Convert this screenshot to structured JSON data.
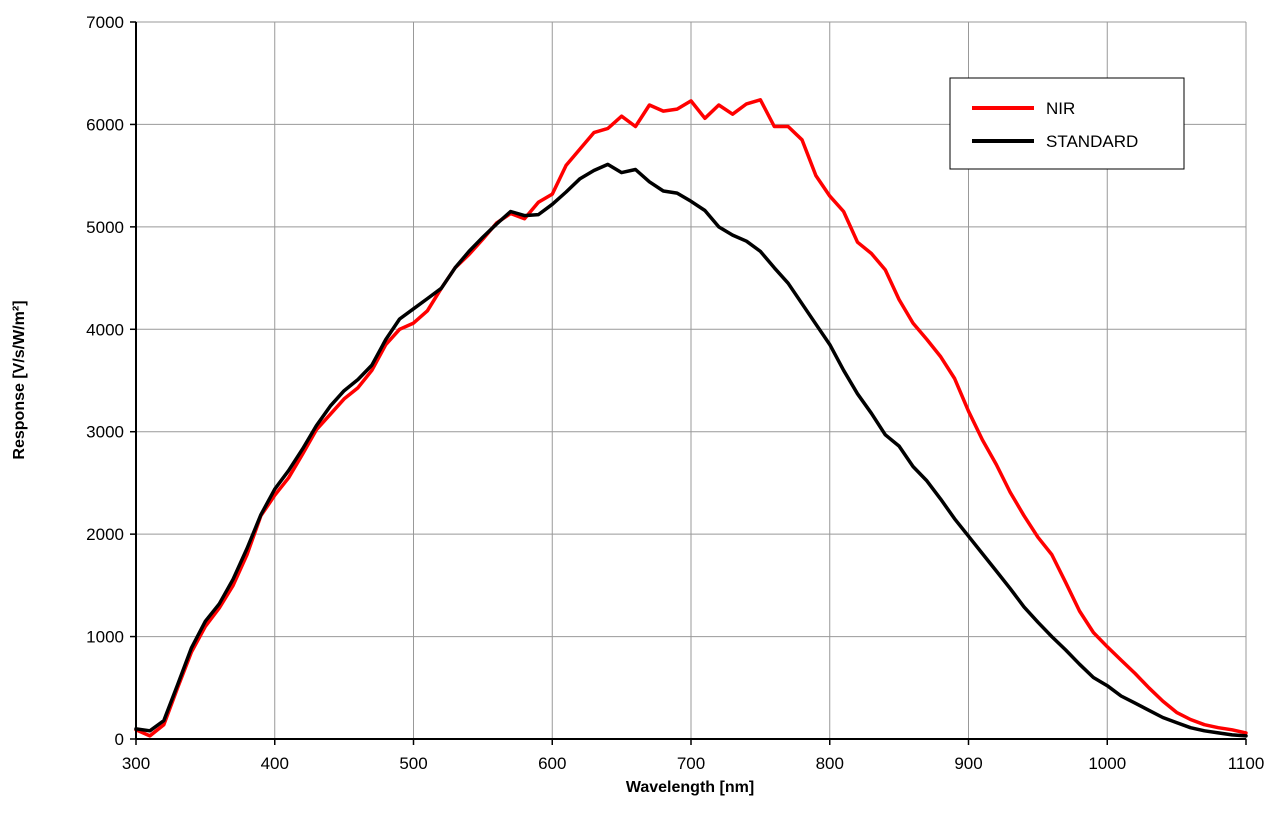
{
  "chart_data": {
    "type": "line",
    "title": "",
    "xlabel": "Wavelength [nm]",
    "ylabel": "Response [V/s/W/m²]",
    "xlim": [
      300,
      1100
    ],
    "ylim": [
      0,
      7000
    ],
    "xticks": [
      300,
      400,
      500,
      600,
      700,
      800,
      900,
      1000,
      1100
    ],
    "yticks": [
      0,
      1000,
      2000,
      3000,
      4000,
      5000,
      6000,
      7000
    ],
    "grid": true,
    "legend_position": "top-right",
    "series": [
      {
        "name": "NIR",
        "color": "#ff0000",
        "x": [
          300,
          310,
          320,
          330,
          340,
          350,
          360,
          370,
          380,
          390,
          400,
          410,
          420,
          430,
          440,
          450,
          460,
          470,
          480,
          490,
          500,
          510,
          520,
          530,
          540,
          550,
          560,
          570,
          580,
          590,
          600,
          610,
          620,
          630,
          640,
          650,
          660,
          670,
          680,
          690,
          700,
          710,
          720,
          730,
          740,
          750,
          760,
          770,
          780,
          790,
          800,
          810,
          820,
          830,
          840,
          850,
          860,
          870,
          880,
          890,
          900,
          910,
          920,
          930,
          940,
          950,
          960,
          970,
          980,
          990,
          1000,
          1010,
          1020,
          1030,
          1040,
          1050,
          1060,
          1070,
          1080,
          1090,
          1100
        ],
        "y": [
          90,
          30,
          140,
          500,
          850,
          1100,
          1280,
          1500,
          1800,
          2180,
          2380,
          2550,
          2780,
          3020,
          3170,
          3320,
          3430,
          3600,
          3850,
          4000,
          4060,
          4180,
          4400,
          4600,
          4730,
          4880,
          5040,
          5130,
          5080,
          5240,
          5320,
          5600,
          5760,
          5920,
          5960,
          6080,
          5980,
          6190,
          6130,
          6150,
          6230,
          6060,
          6190,
          6100,
          6200,
          6240,
          5980,
          5980,
          5850,
          5500,
          5300,
          5150,
          4850,
          4740,
          4580,
          4290,
          4060,
          3900,
          3730,
          3520,
          3200,
          2920,
          2680,
          2410,
          2180,
          1970,
          1800,
          1530,
          1250,
          1040,
          900,
          770,
          640,
          500,
          370,
          260,
          190,
          140,
          110,
          90,
          60
        ]
      },
      {
        "name": "STANDARD",
        "color": "#000000",
        "x": [
          300,
          310,
          320,
          330,
          340,
          350,
          360,
          370,
          380,
          390,
          400,
          410,
          420,
          430,
          440,
          450,
          460,
          470,
          480,
          490,
          500,
          510,
          520,
          530,
          540,
          550,
          560,
          570,
          580,
          590,
          600,
          610,
          620,
          630,
          640,
          650,
          660,
          670,
          680,
          690,
          700,
          710,
          720,
          730,
          740,
          750,
          760,
          770,
          780,
          790,
          800,
          810,
          820,
          830,
          840,
          850,
          860,
          870,
          880,
          890,
          900,
          910,
          920,
          930,
          940,
          950,
          960,
          970,
          980,
          990,
          1000,
          1010,
          1020,
          1030,
          1040,
          1050,
          1060,
          1070,
          1080,
          1090,
          1100
        ],
        "y": [
          100,
          80,
          180,
          530,
          890,
          1150,
          1320,
          1560,
          1860,
          2190,
          2440,
          2620,
          2830,
          3060,
          3250,
          3400,
          3510,
          3650,
          3900,
          4100,
          4200,
          4300,
          4400,
          4600,
          4760,
          4900,
          5030,
          5150,
          5110,
          5120,
          5220,
          5340,
          5470,
          5550,
          5610,
          5530,
          5560,
          5440,
          5350,
          5330,
          5250,
          5160,
          5000,
          4920,
          4860,
          4760,
          4600,
          4450,
          4250,
          4050,
          3850,
          3600,
          3370,
          3180,
          2970,
          2860,
          2660,
          2520,
          2340,
          2150,
          1980,
          1810,
          1640,
          1470,
          1290,
          1140,
          1000,
          870,
          730,
          600,
          520,
          420,
          350,
          280,
          210,
          160,
          110,
          80,
          60,
          40,
          30
        ]
      }
    ]
  }
}
